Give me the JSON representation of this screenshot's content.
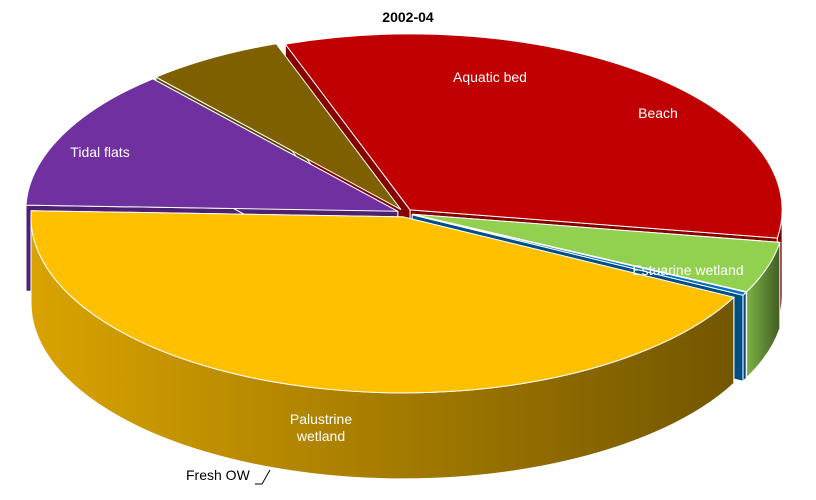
{
  "chart_data": {
    "type": "pie",
    "title": "2002-04",
    "style": "3d-exploded",
    "slices": [
      {
        "label": "Aquatic bed",
        "value": 13.0,
        "color": "#7030A0",
        "label_color": "#ffffff"
      },
      {
        "label": "Beach",
        "value": 6.0,
        "color": "#7F6000",
        "label_color": "#ffffff"
      },
      {
        "label": "Estuarine wetland",
        "value": 33.0,
        "color": "#C00000",
        "label_color": "#ffffff"
      },
      {
        "label": "Palustrine\nwetland",
        "value": 4.7,
        "color": "#92D050",
        "label_color": "#ffffff"
      },
      {
        "label": "Fresh OW",
        "value": 0.3,
        "color": "#0070C0",
        "label_color": "#000000"
      },
      {
        "label": "Tidal flats",
        "value": 43.0,
        "color": "#FFC000",
        "label_color": "#ffffff"
      }
    ]
  }
}
